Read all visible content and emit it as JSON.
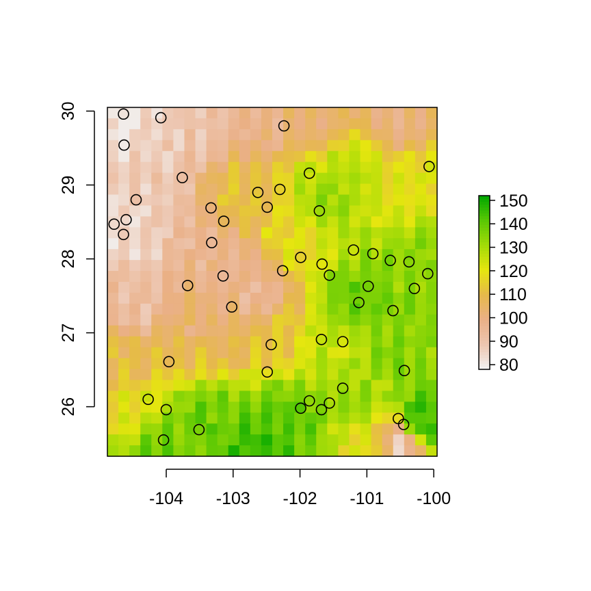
{
  "chart_data": {
    "type": "heatmap",
    "title": "",
    "xlabel": "",
    "ylabel": "",
    "xlim": [
      -104.88,
      -99.95
    ],
    "ylim": [
      25.33,
      30.05
    ],
    "x_ticks": [
      "-104",
      "-103",
      "-102",
      "-101",
      "-100"
    ],
    "y_ticks": [
      "26",
      "27",
      "28",
      "29",
      "30"
    ],
    "grid": false,
    "colorbar": {
      "range": [
        78,
        152
      ],
      "ticks": [
        "80",
        "90",
        "100",
        "110",
        "120",
        "130",
        "140",
        "150"
      ],
      "colors": [
        "#f2f2f2",
        "#edc6b0",
        "#eab087",
        "#e6b84c",
        "#e6e60f",
        "#a3db08",
        "#5ac804",
        "#00a600"
      ],
      "placement": "right"
    },
    "raster_profile": {
      "cols": 30,
      "rows": 32,
      "control_points": [
        [
          -104.7,
          29.95,
          80
        ],
        [
          -104.4,
          29.95,
          86
        ],
        [
          -103.5,
          29.95,
          90
        ],
        [
          -102.6,
          29.95,
          98
        ],
        [
          -101.8,
          29.95,
          102
        ],
        [
          -100.5,
          29.9,
          100
        ],
        [
          -104.6,
          28.4,
          84
        ],
        [
          -104.3,
          28.8,
          88
        ],
        [
          -104.5,
          27.4,
          92
        ],
        [
          -103.2,
          28.0,
          96
        ],
        [
          -103.5,
          27.0,
          100
        ],
        [
          -102.6,
          27.5,
          96
        ],
        [
          -102.8,
          28.8,
          112
        ],
        [
          -102.1,
          28.3,
          118
        ],
        [
          -101.6,
          28.8,
          132
        ],
        [
          -101.2,
          29.1,
          128
        ],
        [
          -100.4,
          29.0,
          120
        ],
        [
          -100.2,
          28.0,
          134
        ],
        [
          -101.2,
          27.4,
          138
        ],
        [
          -100.6,
          26.8,
          135
        ],
        [
          -101.4,
          26.8,
          126
        ],
        [
          -102.4,
          27.0,
          112
        ],
        [
          -103.5,
          26.8,
          112
        ],
        [
          -104.6,
          26.6,
          110
        ],
        [
          -104.6,
          25.9,
          120
        ],
        [
          -103.4,
          25.9,
          138
        ],
        [
          -102.2,
          25.8,
          140
        ],
        [
          -101.1,
          26.1,
          132
        ],
        [
          -100.2,
          25.8,
          146
        ],
        [
          -100.5,
          25.5,
          88
        ],
        [
          -100.9,
          25.5,
          118
        ],
        [
          -102.6,
          25.4,
          146
        ],
        [
          -104.2,
          25.4,
          138
        ]
      ]
    },
    "points": [
      [
        -104.64,
        29.96
      ],
      [
        -104.08,
        29.91
      ],
      [
        -102.24,
        29.8
      ],
      [
        -104.63,
        29.54
      ],
      [
        -100.07,
        29.25
      ],
      [
        -101.86,
        29.16
      ],
      [
        -103.76,
        29.1
      ],
      [
        -102.3,
        28.94
      ],
      [
        -102.63,
        28.9
      ],
      [
        -104.45,
        28.8
      ],
      [
        -103.33,
        28.69
      ],
      [
        -102.49,
        28.7
      ],
      [
        -101.71,
        28.65
      ],
      [
        -104.6,
        28.53
      ],
      [
        -103.14,
        28.51
      ],
      [
        -104.78,
        28.47
      ],
      [
        -104.64,
        28.33
      ],
      [
        -103.32,
        28.22
      ],
      [
        -101.2,
        28.12
      ],
      [
        -100.91,
        28.07
      ],
      [
        -101.99,
        28.02
      ],
      [
        -100.65,
        27.98
      ],
      [
        -100.37,
        27.96
      ],
      [
        -101.67,
        27.93
      ],
      [
        -102.26,
        27.84
      ],
      [
        -100.09,
        27.8
      ],
      [
        -101.56,
        27.78
      ],
      [
        -103.15,
        27.77
      ],
      [
        -103.68,
        27.64
      ],
      [
        -100.98,
        27.63
      ],
      [
        -100.29,
        27.6
      ],
      [
        -101.12,
        27.41
      ],
      [
        -103.02,
        27.35
      ],
      [
        -100.61,
        27.3
      ],
      [
        -101.68,
        26.91
      ],
      [
        -101.36,
        26.88
      ],
      [
        -102.43,
        26.84
      ],
      [
        -103.96,
        26.61
      ],
      [
        -102.49,
        26.47
      ],
      [
        -100.44,
        26.49
      ],
      [
        -101.36,
        26.25
      ],
      [
        -104.27,
        26.1
      ],
      [
        -101.86,
        26.08
      ],
      [
        -101.56,
        26.05
      ],
      [
        -101.99,
        25.98
      ],
      [
        -101.68,
        25.96
      ],
      [
        -104.0,
        25.96
      ],
      [
        -100.53,
        25.84
      ],
      [
        -100.45,
        25.76
      ],
      [
        -103.51,
        25.69
      ],
      [
        -104.04,
        25.55
      ]
    ]
  }
}
